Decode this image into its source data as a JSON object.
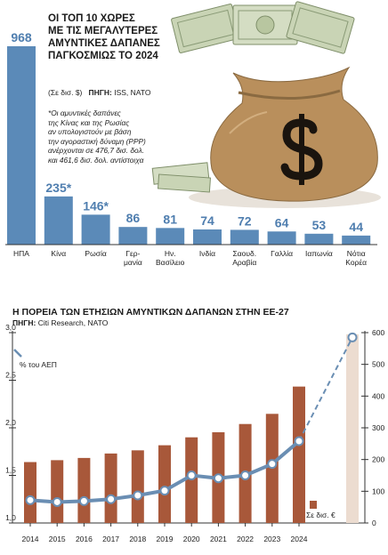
{
  "top": {
    "title_lines": [
      "ΟΙ ΤΟΠ 10 ΧΩΡΕΣ",
      "ΜΕ ΤΙΣ ΜΕΓΑΛΥΤΕΡΕΣ",
      "ΑΜΥΝΤΙΚΕΣ ΔΑΠΑΝΕΣ",
      "ΠΑΓΚΟΣΜΙΩΣ ΤΟ 2024"
    ],
    "unit": "(Σε δισ. $)",
    "source_label": "ΠΗΓΗ:",
    "source_text": "ISS, NATO",
    "note_lines": [
      "*Οι αμυντικές δαπάνες",
      "της Κίνας και της Ρωσίας",
      "αν υπολογιστούν με βάση",
      "την αγοραστική δύναμη (PPP)",
      "ανέρχονται σε 476,7 δισ. δολ.",
      "και 461,6 δισ. δολ. αντίστοιχα"
    ]
  },
  "bottom": {
    "title": "Η ΠΟΡΕΙΑ ΤΩΝ ΕΤΗΣΙΩΝ ΑΜΥΝΤΙΚΩΝ ΔΑΠΑΝΩΝ ΣΤΗΝ ΕΕ-27",
    "source_label": "ΠΗΓΗ:",
    "source_text": "Citi Research, NATO"
  },
  "colors": {
    "top_bar": "#5b8ab8",
    "top_label": "#4f7eaf",
    "bottom_bar": "#a8583a",
    "line": "#6a8eb3",
    "projection_bar": "#ecdcd0",
    "axis": "#333333",
    "money_bag": "#b98f5c",
    "money_note": "#c9d4b5"
  },
  "chart_data": [
    {
      "type": "bar",
      "categories": [
        "ΗΠΑ",
        "Κίνα",
        "Ρωσία",
        "Γερ-\nμανία",
        "Ην.\nΒασίλειο",
        "Ινδία",
        "Σαουδ.\nΑραβία",
        "Γαλλία",
        "Ιαπωνία",
        "Νότια\nΚορέα"
      ],
      "values": [
        968,
        235,
        146,
        86,
        81,
        74,
        72,
        64,
        53,
        44
      ],
      "value_labels": [
        "968",
        "235*",
        "146*",
        "86",
        "81",
        "74",
        "72",
        "64",
        "53",
        "44"
      ],
      "ylim": [
        0,
        968
      ]
    },
    {
      "type": "bar",
      "x": [
        "2014",
        "2015",
        "2016",
        "2017",
        "2018",
        "2019",
        "2020",
        "2021",
        "2022",
        "2023",
        "2024"
      ],
      "left_axis_ticks": [
        "3,0",
        "2,5",
        "2,0",
        "1,5",
        "1,0"
      ],
      "left_axis_range": [
        1.0,
        3.0
      ],
      "right_axis_ticks": [
        "600",
        "500",
        "400",
        "300",
        "200",
        "100",
        "0"
      ],
      "right_axis_range": [
        0,
        600
      ],
      "series": [
        {
          "name": "Σε δισ. €",
          "axis": "right",
          "kind": "bar",
          "values": [
            192,
            198,
            205,
            219,
            229,
            245,
            270,
            286,
            312,
            344,
            430
          ]
        },
        {
          "name": "% του ΑΕΠ",
          "axis": "left",
          "kind": "line",
          "values": [
            1.24,
            1.22,
            1.23,
            1.25,
            1.29,
            1.34,
            1.5,
            1.47,
            1.5,
            1.62,
            1.86
          ]
        },
        {
          "kind": "projection",
          "axis": "left",
          "x_label": "",
          "line_end_value": 2.95,
          "bar_end_value_right_axis": 595
        }
      ]
    }
  ]
}
